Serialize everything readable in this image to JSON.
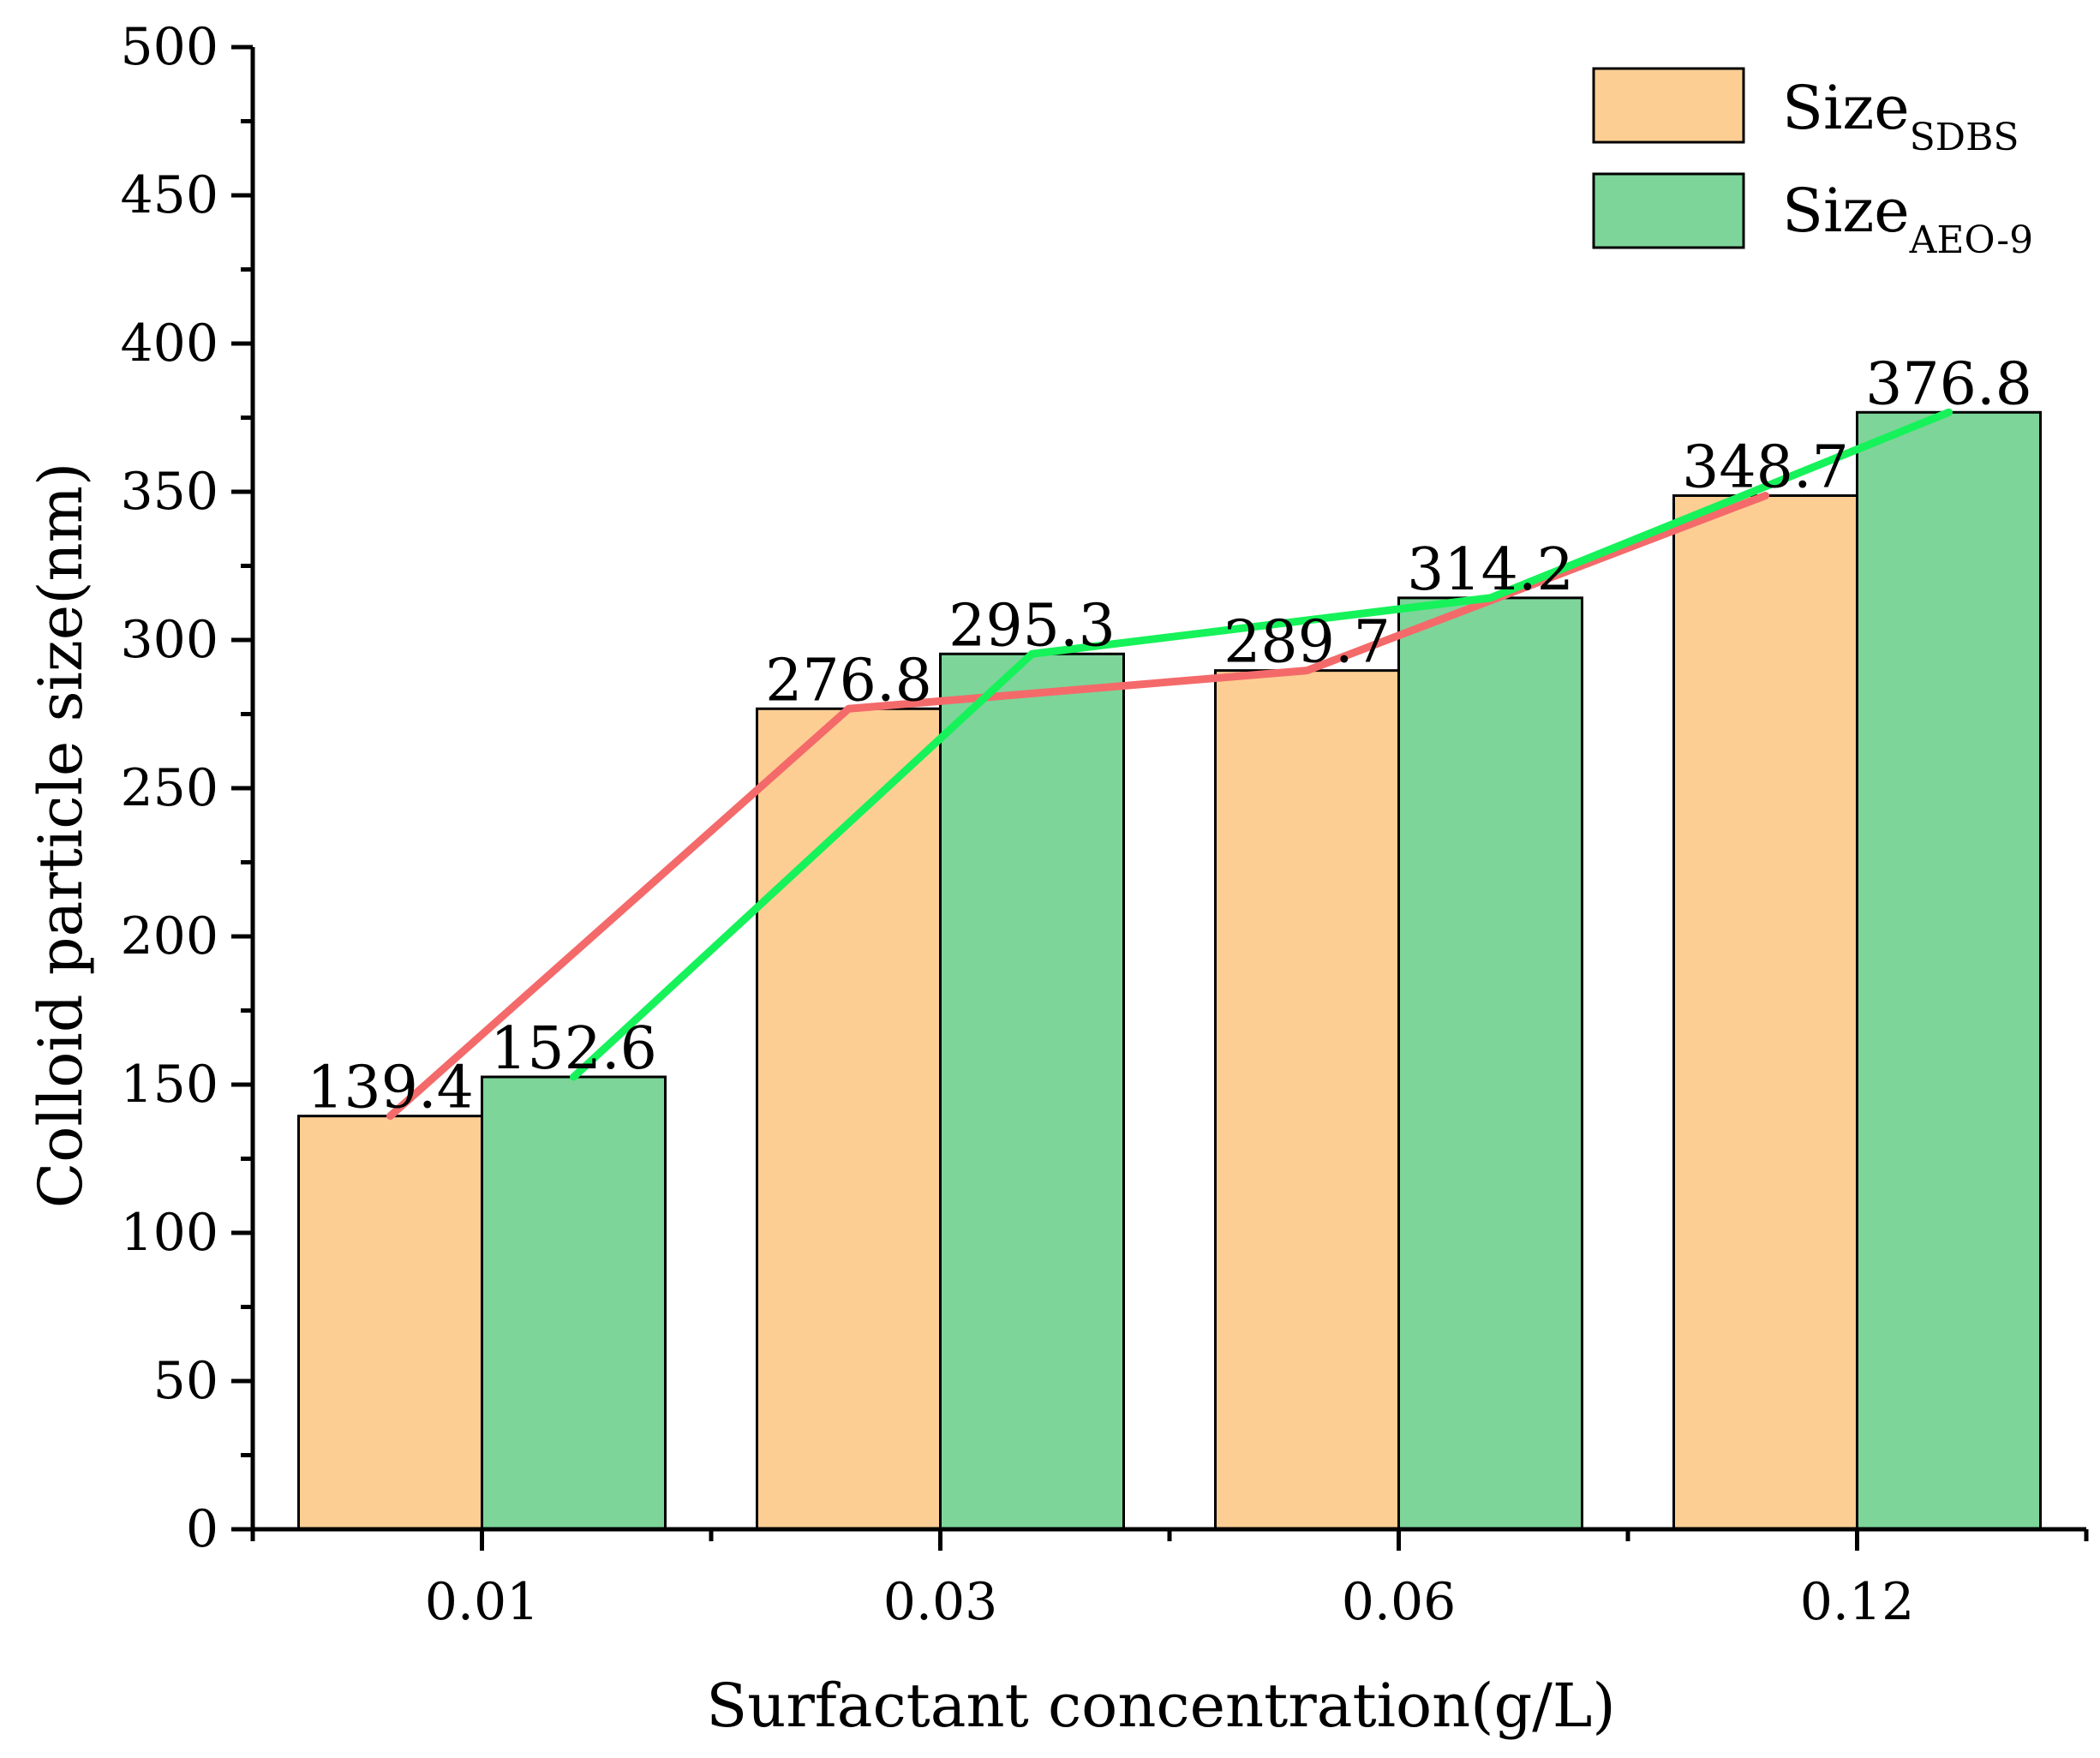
{
  "chart_data": {
    "type": "bar",
    "xlabel": "Surfactant concentration(g/L)",
    "ylabel": "Colloid particle size(nm)",
    "categories": [
      "0.01",
      "0.03",
      "0.06",
      "0.12"
    ],
    "ylim": [
      0,
      500
    ],
    "yticks": [
      0,
      50,
      100,
      150,
      200,
      250,
      300,
      350,
      400,
      450,
      500
    ],
    "ytick_labels": [
      "0",
      "50",
      "100",
      "150",
      "200",
      "250",
      "300",
      "350",
      "400",
      "450",
      "500"
    ],
    "series": [
      {
        "name": "Size",
        "subscript": "SDBS",
        "fill": "#FDCE93",
        "line_color": "#F46A6A",
        "values": [
          139.4,
          276.8,
          289.7,
          348.7
        ],
        "labels": [
          "139.4",
          "276.8",
          "289.7",
          "348.7"
        ]
      },
      {
        "name": "Size",
        "subscript": "AEO-9",
        "fill": "#7DD59A",
        "line_color": "#16F25A",
        "values": [
          152.6,
          295.3,
          314.2,
          376.8
        ],
        "labels": [
          "152.6",
          "295.3",
          "314.2",
          "376.8"
        ]
      }
    ],
    "legend_position": "top-right",
    "grid": false
  }
}
